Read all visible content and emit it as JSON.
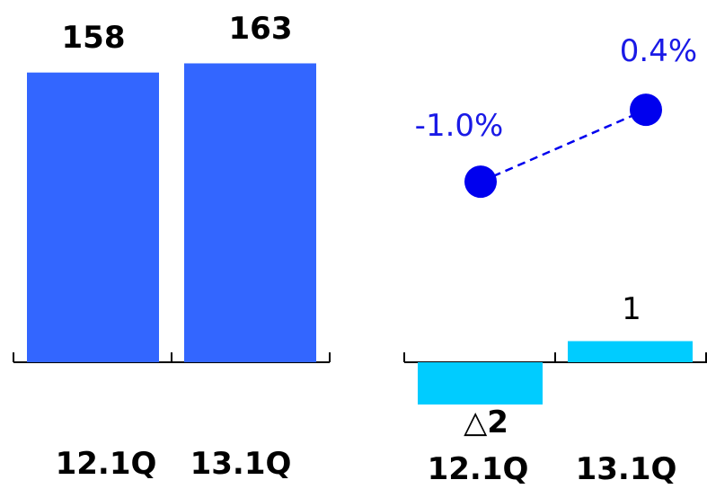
{
  "chart_data": [
    {
      "type": "bar",
      "categories": [
        "12.1Q",
        "13.1Q"
      ],
      "values": [
        158,
        163
      ],
      "value_labels": [
        "158",
        "163"
      ],
      "bar_color": "#3366ff"
    },
    {
      "type": "line",
      "categories": [
        "12.1Q",
        "13.1Q"
      ],
      "values": [
        -1.0,
        0.4
      ],
      "value_labels": [
        "-1.0%",
        "0.4%"
      ],
      "line_style": "dashed",
      "color": "#0000ee"
    },
    {
      "type": "bar",
      "categories": [
        "12.1Q",
        "13.1Q"
      ],
      "values": [
        -2,
        1
      ],
      "value_labels": [
        "△2",
        "1"
      ],
      "bar_color": "#00ccff"
    }
  ]
}
